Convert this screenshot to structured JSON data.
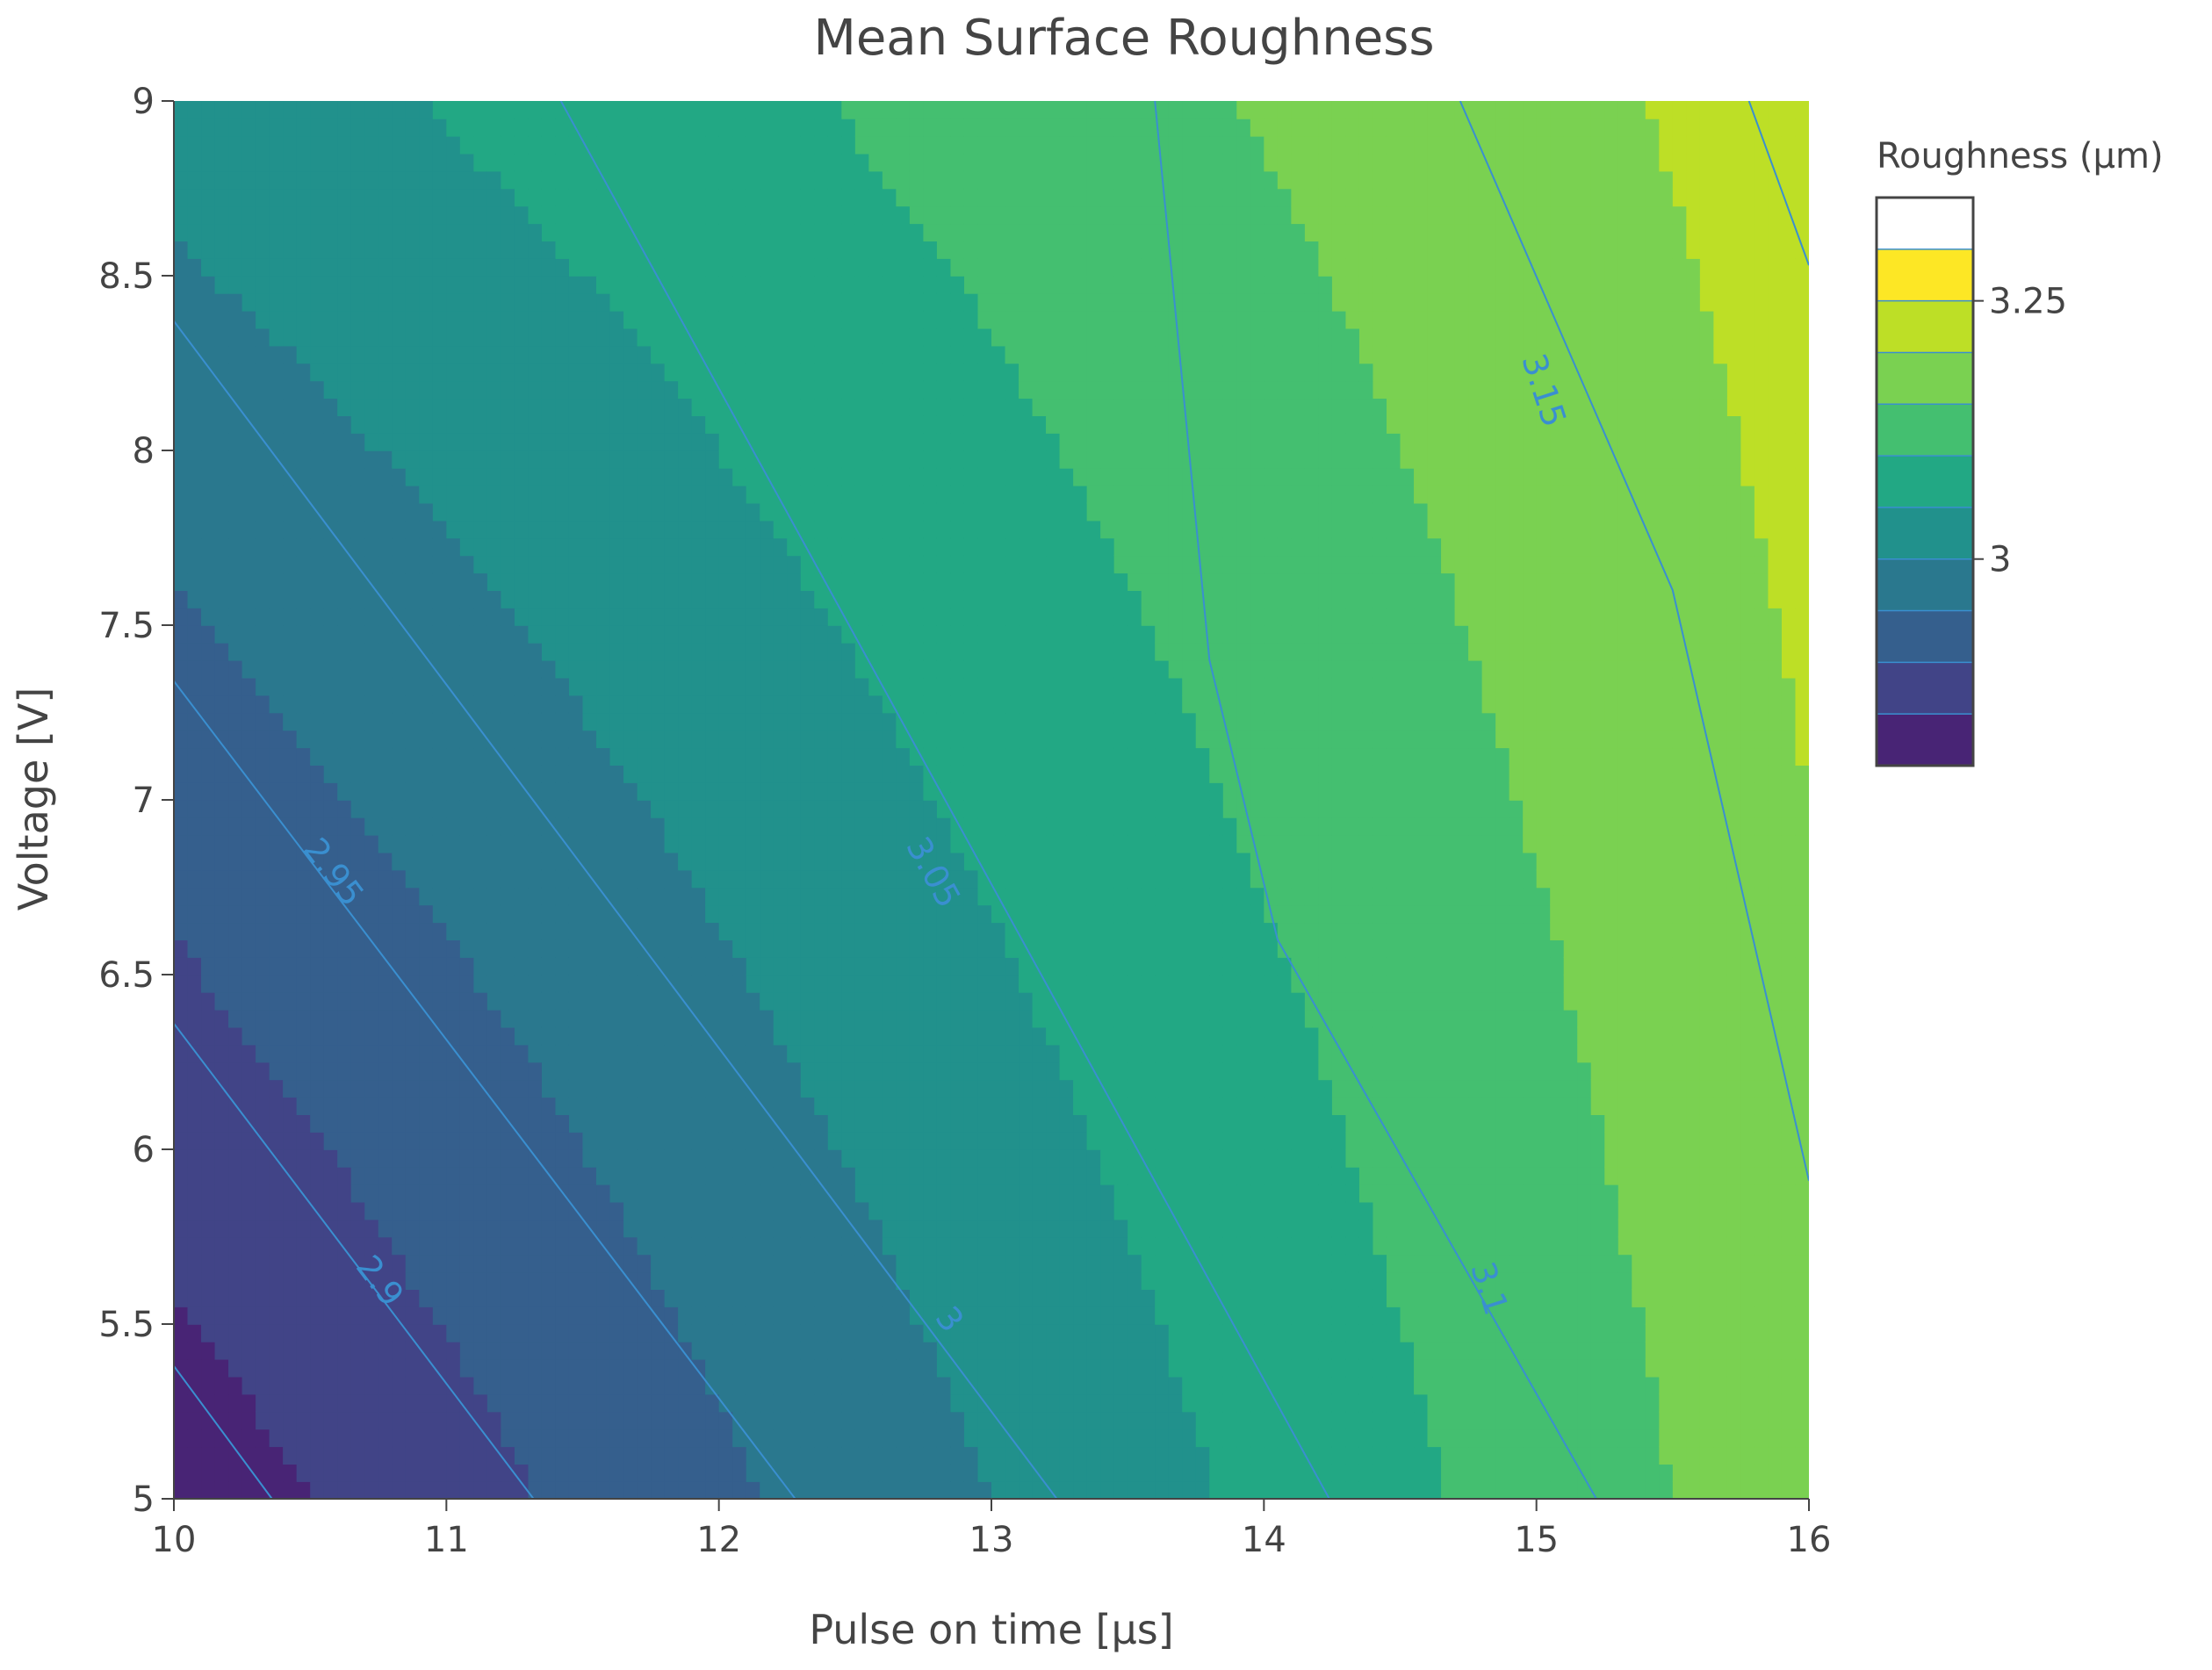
{
  "chart_data": {
    "type": "contour",
    "title": "Mean Surface Roughness",
    "xlabel": "Pulse on time  [μs]",
    "ylabel": "Voltage [V]",
    "xlim": [
      10,
      16
    ],
    "ylim": [
      5,
      9
    ],
    "x_ticks": [
      "10",
      "11",
      "12",
      "13",
      "14",
      "15",
      "16"
    ],
    "y_ticks": [
      "5",
      "5.5",
      "6",
      "6.5",
      "7",
      "7.5",
      "8",
      "8.5",
      "9"
    ],
    "grid": false,
    "contour_levels": [
      2.8,
      2.85,
      2.9,
      2.95,
      3.0,
      3.05,
      3.1,
      3.15,
      3.2,
      3.25,
      3.3
    ],
    "contour_lines": [
      {
        "level": 2.85,
        "points": [
          [
            10,
            5.38
          ],
          [
            10.36,
            5
          ]
        ]
      },
      {
        "level": 2.9,
        "points": [
          [
            10,
            6.36
          ],
          [
            11.32,
            5
          ]
        ],
        "label": "2.9",
        "label_at": [
          10.75,
          5.62
        ]
      },
      {
        "level": 2.95,
        "points": [
          [
            10,
            7.34
          ],
          [
            12.28,
            5
          ]
        ],
        "label": "2.95",
        "label_at": [
          10.58,
          6.79
        ]
      },
      {
        "level": 3.0,
        "points": [
          [
            10,
            8.37
          ],
          [
            13.24,
            5
          ]
        ],
        "label": "3",
        "label_at": [
          12.84,
          5.51
        ]
      },
      {
        "level": 3.05,
        "points": [
          [
            11.42,
            9
          ],
          [
            14.24,
            5
          ]
        ],
        "label": "3.05",
        "label_at": [
          12.78,
          6.79
        ]
      },
      {
        "level": 3.1,
        "points": [
          [
            13.6,
            9
          ],
          [
            13.8,
            7.4
          ],
          [
            14.05,
            6.6
          ],
          [
            15.22,
            5
          ]
        ],
        "label": "3.1",
        "label_at": [
          14.82,
          5.6
        ]
      },
      {
        "level": 3.15,
        "points": [
          [
            14.72,
            9
          ],
          [
            15.5,
            7.6
          ],
          [
            16,
            5.91
          ]
        ],
        "label": "3.15",
        "label_at": [
          15.02,
          8.17
        ]
      },
      {
        "level": 3.2,
        "points": [
          [
            15.78,
            9
          ],
          [
            16,
            8.53
          ]
        ]
      }
    ],
    "z_corner_values": {
      "x10_y5": 2.82,
      "x16_y5": 3.18,
      "x10_y9": 3.02,
      "x16_y9": 3.22
    },
    "colorbar": {
      "title": "Roughness (μm)",
      "ticks": [
        "3",
        "3.25"
      ],
      "range": [
        2.8,
        3.35
      ],
      "colors": [
        "#440154",
        "#482475",
        "#414487",
        "#355f8d",
        "#2a788e",
        "#21918c",
        "#22a884",
        "#44bf70",
        "#7ad151",
        "#bddf26",
        "#fde725"
      ]
    }
  }
}
